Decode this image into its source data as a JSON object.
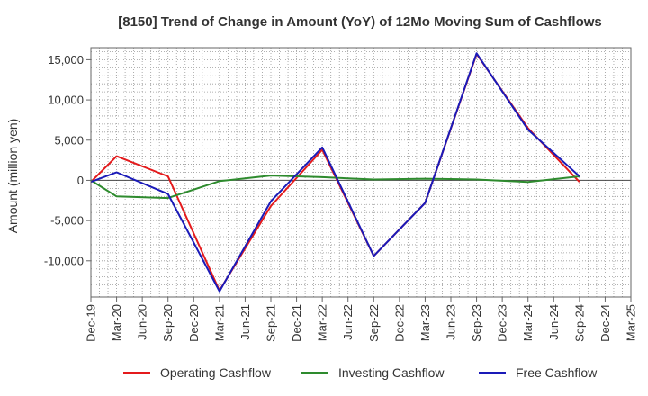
{
  "chart_data": {
    "type": "line",
    "title": "[8150]  Trend of Change in Amount (YoY) of 12Mo Moving Sum of Cashflows",
    "xlabel": "",
    "ylabel": "Amount (million yen)",
    "ylim": [
      -14500,
      16500
    ],
    "yticks": [
      15000,
      10000,
      5000,
      0,
      -5000,
      -10000
    ],
    "ytick_labels": [
      "15,000",
      "10,000",
      "5,000",
      "0",
      "-5,000",
      "-10,000"
    ],
    "categories": [
      "Dec-19",
      "Mar-20",
      "Jun-20",
      "Sep-20",
      "Dec-20",
      "Mar-21",
      "Jun-21",
      "Sep-21",
      "Dec-21",
      "Mar-22",
      "Jun-22",
      "Sep-22",
      "Dec-22",
      "Mar-23",
      "Jun-23",
      "Sep-23",
      "Dec-23",
      "Mar-24",
      "Jun-24",
      "Sep-24",
      "Dec-24",
      "Mar-25"
    ],
    "grid": true,
    "legend_position": "bottom",
    "series": [
      {
        "name": "Operating Cashflow",
        "color": "#e41a1c",
        "values": [
          -200,
          3000,
          null,
          500,
          null,
          -13700,
          null,
          -3200,
          null,
          3800,
          null,
          -9400,
          null,
          -2800,
          null,
          15700,
          null,
          6500,
          null,
          -200,
          null,
          null
        ]
      },
      {
        "name": "Investing Cashflow",
        "color": "#2e8b2e",
        "values": [
          0,
          -2000,
          null,
          -2200,
          null,
          -100,
          null,
          600,
          null,
          400,
          null,
          100,
          null,
          200,
          null,
          100,
          null,
          -200,
          null,
          500,
          null,
          null
        ]
      },
      {
        "name": "Free Cashflow",
        "color": "#1a1ab8",
        "values": [
          -200,
          1000,
          null,
          -1700,
          null,
          -13800,
          null,
          -2600,
          null,
          4100,
          null,
          -9400,
          null,
          -2800,
          null,
          15800,
          null,
          6300,
          null,
          500,
          null,
          null
        ]
      }
    ]
  }
}
